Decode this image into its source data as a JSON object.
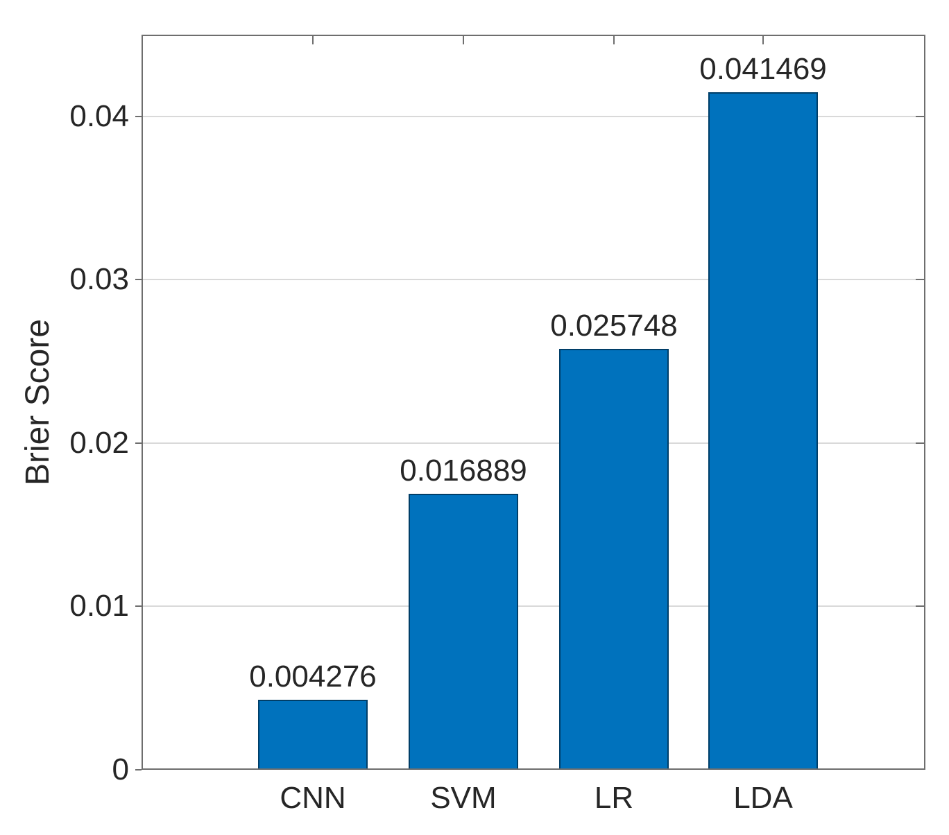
{
  "chart_data": {
    "type": "bar",
    "title": "",
    "xlabel": "",
    "ylabel": "Brier Score",
    "categories": [
      "CNN",
      "SVM",
      "LR",
      "LDA"
    ],
    "values": [
      0.004276,
      0.016889,
      0.025748,
      0.041469
    ],
    "value_labels": [
      "0.004276",
      "0.016889",
      "0.025748",
      "0.041469"
    ],
    "ylim": [
      0,
      0.045
    ],
    "yticks": [
      0,
      0.01,
      0.02,
      0.03,
      0.04
    ],
    "ytick_labels": [
      "0",
      "0.01",
      "0.02",
      "0.03",
      "0.04"
    ],
    "grid": "horizontal-on",
    "legend_position": "none",
    "bar_color": "#0072BD",
    "bar_edge_color": "rgba(0,0,0,0.45)",
    "axis_color": "#6e6e6e",
    "grid_color": "#d9d9d9",
    "text_color": "#262626",
    "background_color": "#ffffff"
  }
}
